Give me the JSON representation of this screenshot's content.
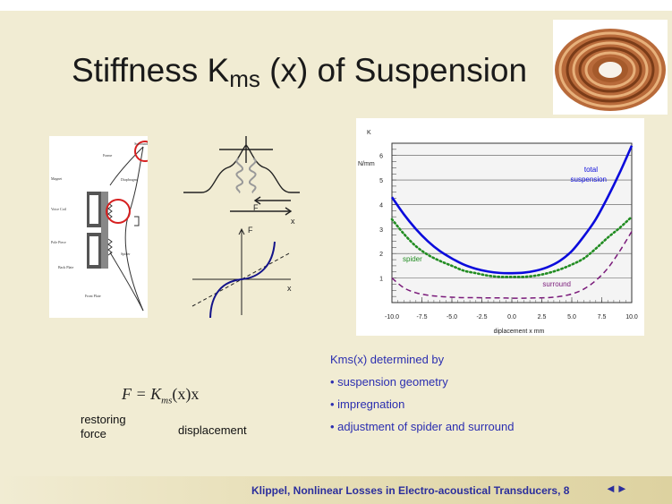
{
  "slide": {
    "title_main": "Stiffness K",
    "title_sub": "ms",
    "title_rest": " (x) of Suspension"
  },
  "diagram": {
    "speaker_labels": [
      "Surround",
      "Frame",
      "Diaphragm",
      "Magnet",
      "Voice Coil",
      "Pole Piece",
      "Spider",
      "Back Plate",
      "Front Plate"
    ],
    "force_label": "F",
    "x_label": "x",
    "curve_F_label": "F",
    "curve_x_label": "x"
  },
  "formula": {
    "lhs": "F = K",
    "sub": "ms",
    "rhs": "(x)x"
  },
  "labels": {
    "restoring_force": "restoring force",
    "displacement": "displacement"
  },
  "kms_list": {
    "heading": "Kms(x) determined by",
    "items": [
      "• suspension geometry",
      "• impregnation",
      "• adjustment of spider and surround"
    ]
  },
  "footer": {
    "text": "Klippel, Nonlinear Losses in Electro-acoustical Transducers, 8",
    "nav": "◄►"
  },
  "colors": {
    "background": "#f1ecd3",
    "total": "#0b0bdc",
    "spider": "#218c21",
    "surround": "#7a1a7a",
    "text_blue": "#2b2eb0"
  },
  "chart_data": {
    "type": "line",
    "ylabel": "K",
    "yunit": "N/mm",
    "xlabel": "diplacement   x   mm",
    "xlim": [
      -10,
      10
    ],
    "ylim": [
      0,
      6.5
    ],
    "x_ticks": [
      "-10.0",
      "-7.5",
      "-5.0",
      "-2.5",
      "0.0",
      "2.5",
      "5.0",
      "7.5",
      "10.0"
    ],
    "y_ticks": [
      "1",
      "2",
      "3",
      "4",
      "5",
      "6"
    ],
    "x": [
      -10,
      -9,
      -8,
      -7,
      -6,
      -5,
      -4,
      -3,
      -2,
      -1,
      0,
      1,
      2,
      3,
      4,
      5,
      6,
      7,
      8,
      9,
      10
    ],
    "series": [
      {
        "name": "total suspension",
        "style": "solid",
        "values": [
          4.3,
          3.6,
          3.0,
          2.5,
          2.1,
          1.8,
          1.55,
          1.38,
          1.27,
          1.21,
          1.2,
          1.22,
          1.3,
          1.45,
          1.7,
          2.1,
          2.7,
          3.4,
          4.3,
          5.3,
          6.4
        ]
      },
      {
        "name": "spider",
        "style": "dotted",
        "values": [
          3.4,
          2.8,
          2.3,
          1.95,
          1.7,
          1.5,
          1.3,
          1.2,
          1.1,
          1.05,
          1.05,
          1.05,
          1.1,
          1.2,
          1.35,
          1.55,
          1.8,
          2.2,
          2.65,
          3.05,
          3.5
        ]
      },
      {
        "name": "surround",
        "style": "dashed",
        "values": [
          1.0,
          0.6,
          0.4,
          0.3,
          0.25,
          0.22,
          0.2,
          0.2,
          0.19,
          0.19,
          0.18,
          0.18,
          0.19,
          0.2,
          0.25,
          0.35,
          0.55,
          0.9,
          1.4,
          2.1,
          2.9
        ]
      }
    ],
    "series_labels": [
      "total",
      "suspension",
      "spider",
      "surround"
    ]
  }
}
